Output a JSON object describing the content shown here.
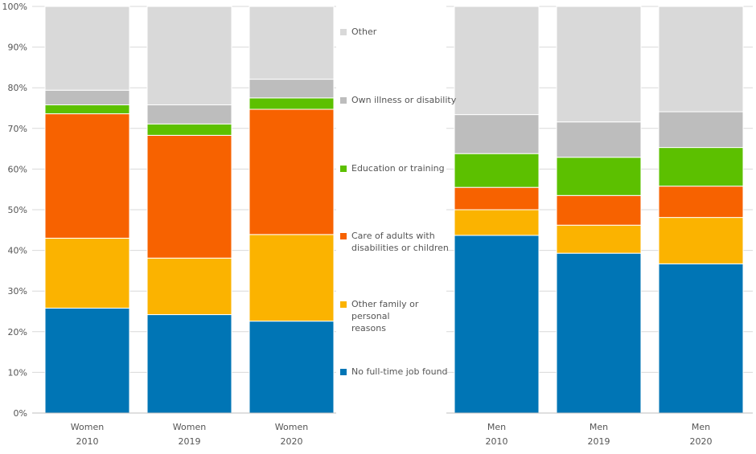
{
  "chart_data": {
    "type": "bar",
    "stacked": true,
    "percent": true,
    "ylim": [
      0,
      100
    ],
    "yticks": [
      "0%",
      "10%",
      "20%",
      "30%",
      "40%",
      "50%",
      "60%",
      "70%",
      "80%",
      "90%",
      "100%"
    ],
    "groups": [
      {
        "name": "Women",
        "categories": [
          {
            "line1": "Women",
            "line2": "2010"
          },
          {
            "line1": "Women",
            "line2": "2019"
          },
          {
            "line1": "Women",
            "line2": "2020"
          }
        ]
      },
      {
        "name": "Men",
        "categories": [
          {
            "line1": "Men",
            "line2": "2010"
          },
          {
            "line1": "Men",
            "line2": "2019"
          },
          {
            "line1": "Men",
            "line2": "2020"
          }
        ]
      }
    ],
    "series": [
      {
        "name": "No full-time job found",
        "color": "#0075B5",
        "values": [
          25.8,
          24.2,
          22.6,
          43.7,
          39.3,
          36.7
        ]
      },
      {
        "name": "Other family or personal reasons",
        "color": "#FBB300",
        "values": [
          17.2,
          13.9,
          21.3,
          6.3,
          6.9,
          11.4
        ]
      },
      {
        "name": "Care of adults with disabilities or children",
        "color": "#F76200",
        "values": [
          30.6,
          30.2,
          30.8,
          5.5,
          7.3,
          7.7
        ]
      },
      {
        "name": "Education or training",
        "color": "#5CC000",
        "values": [
          2.2,
          2.8,
          2.8,
          8.3,
          9.4,
          9.5
        ]
      },
      {
        "name": "Own illness or disability",
        "color": "#BDBDBD",
        "values": [
          3.6,
          4.7,
          4.6,
          9.6,
          8.7,
          8.8
        ]
      },
      {
        "name": "Other",
        "color": "#D9D9D9",
        "values": [
          20.6,
          24.2,
          17.9,
          26.6,
          28.4,
          25.9
        ]
      }
    ],
    "legend": [
      {
        "lines": [
          "Other"
        ],
        "color": "#D9D9D9"
      },
      {
        "lines": [
          "Own illness or disability"
        ],
        "color": "#BDBDBD"
      },
      {
        "lines": [
          "Education or training"
        ],
        "color": "#5CC000"
      },
      {
        "lines": [
          "Care of adults with",
          "disabilities or children"
        ],
        "color": "#F76200"
      },
      {
        "lines": [
          "Other family or personal",
          "reasons"
        ],
        "color": "#FBB300"
      },
      {
        "lines": [
          "No full-time job found"
        ],
        "color": "#0075B5"
      }
    ]
  }
}
